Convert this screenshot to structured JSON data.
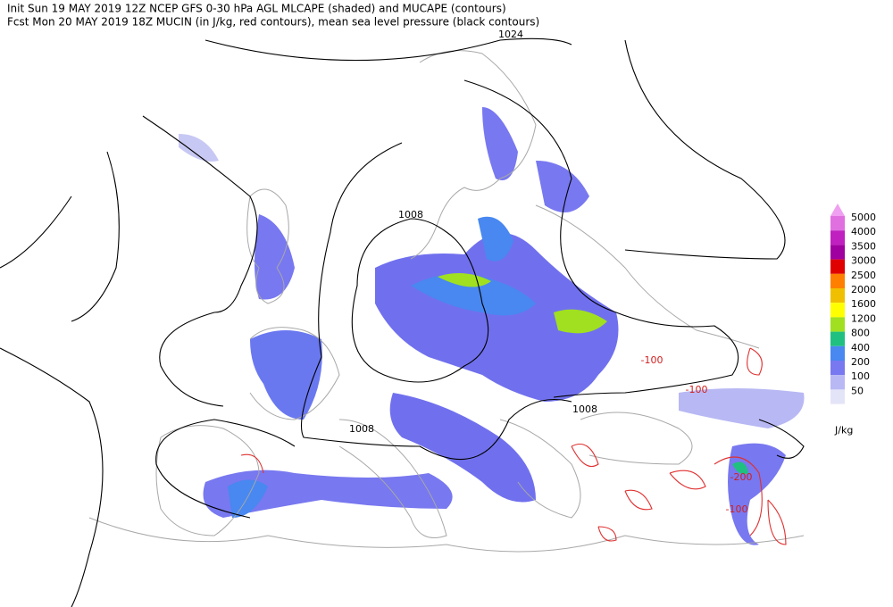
{
  "header": {
    "line1": "Init  Sun 19 MAY 2019 12Z  NCEP GFS 0-30 hPa AGL MLCAPE (shaded) and MUCAPE (contours)",
    "line2": "Fcst Mon 20 MAY 2019 18Z  MUCIN (in J/kg, red contours), mean sea level pressure (black contours)"
  },
  "legend": {
    "levels": [
      {
        "value": 5000,
        "color": "#e070e0"
      },
      {
        "value": 4000,
        "color": "#c020c0"
      },
      {
        "value": 3500,
        "color": "#a000a0"
      },
      {
        "value": 3000,
        "color": "#e00000"
      },
      {
        "value": 2500,
        "color": "#ff8000"
      },
      {
        "value": 2000,
        "color": "#f0c000"
      },
      {
        "value": 1600,
        "color": "#ffff00"
      },
      {
        "value": 1200,
        "color": "#a0e020"
      },
      {
        "value": 800,
        "color": "#20c080"
      },
      {
        "value": 400,
        "color": "#4888f0"
      },
      {
        "value": 200,
        "color": "#7878f0"
      },
      {
        "value": 100,
        "color": "#b8b8f4"
      },
      {
        "value": 50,
        "color": "#e4e4f8"
      }
    ],
    "top_color": "#f0a0f0",
    "unit": "J/kg"
  },
  "pressure_labels": [
    1024,
    1008,
    1008,
    1008
  ],
  "cin_labels": [
    -100,
    -100,
    -200,
    -100
  ]
}
